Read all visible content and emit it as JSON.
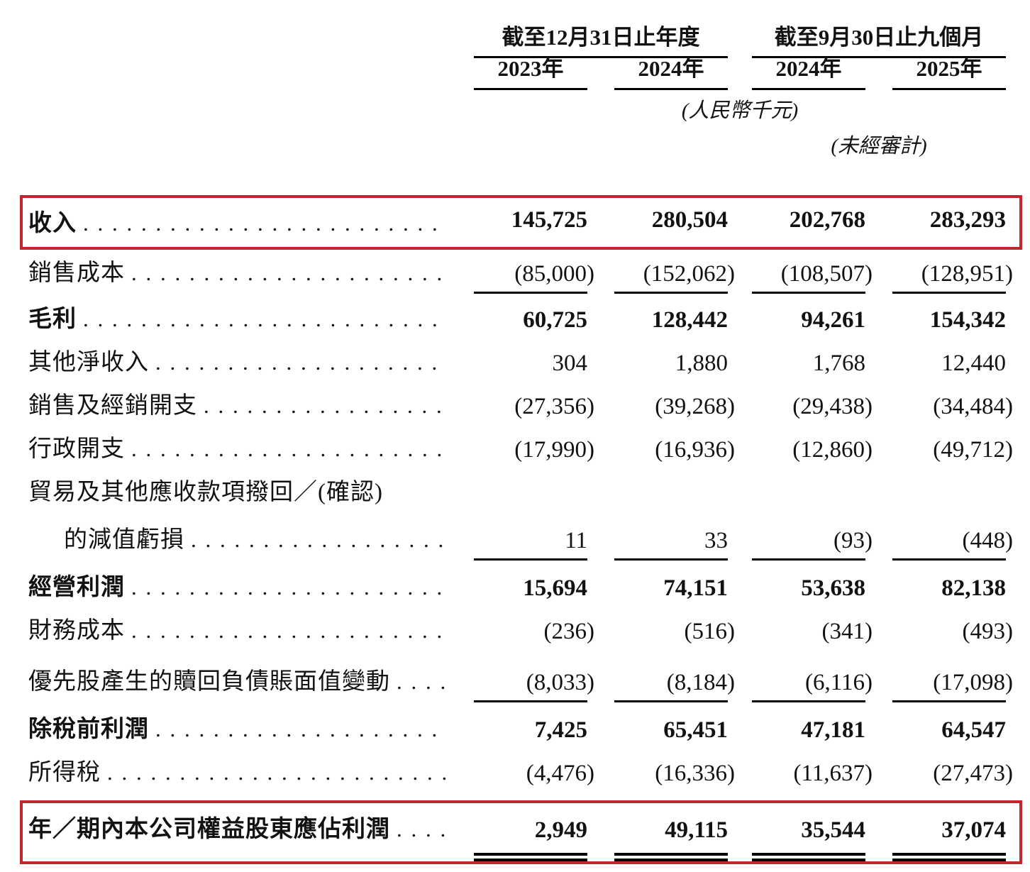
{
  "accent": {
    "highlight_border_color": "#c0272e",
    "rule_color": "#000000"
  },
  "header": {
    "group1": "截至12月31日止年度",
    "group2": "截至9月30日止九個月",
    "years": [
      "2023年",
      "2024年",
      "2024年",
      "2025年"
    ],
    "unit_note": "(人民幣千元)",
    "unaudited_note": "(未經審計)"
  },
  "table": {
    "rows": [
      {
        "label": "收入",
        "values": [
          "145,725",
          "280,504",
          "202,768",
          "283,293"
        ]
      },
      {
        "label": "銷售成本",
        "values": [
          "(85,000)",
          "(152,062)",
          "(108,507)",
          "(128,951)"
        ]
      },
      {
        "label": "毛利",
        "values": [
          "60,725",
          "128,442",
          "94,261",
          "154,342"
        ]
      },
      {
        "label": "其他淨收入",
        "values": [
          "304",
          "1,880",
          "1,768",
          "12,440"
        ]
      },
      {
        "label": "銷售及經銷開支",
        "values": [
          "(27,356)",
          "(39,268)",
          "(29,438)",
          "(34,484)"
        ]
      },
      {
        "label": "行政開支",
        "values": [
          "(17,990)",
          "(16,936)",
          "(12,860)",
          "(49,712)"
        ]
      },
      {
        "label": "貿易及其他應收款項撥回／(確認)",
        "values": []
      },
      {
        "label": "的減值虧損",
        "values": [
          "11",
          "33",
          "(93)",
          "(448)"
        ]
      },
      {
        "label": "經營利潤",
        "values": [
          "15,694",
          "74,151",
          "53,638",
          "82,138"
        ]
      },
      {
        "label": "財務成本",
        "values": [
          "(236)",
          "(516)",
          "(341)",
          "(493)"
        ]
      },
      {
        "label": "優先股產生的贖回負債賬面值變動",
        "values": [
          "(8,033)",
          "(8,184)",
          "(6,116)",
          "(17,098)"
        ]
      },
      {
        "label": "除稅前利潤",
        "values": [
          "7,425",
          "65,451",
          "47,181",
          "64,547"
        ]
      },
      {
        "label": "所得稅",
        "values": [
          "(4,476)",
          "(16,336)",
          "(11,637)",
          "(27,473)"
        ]
      },
      {
        "label": "年／期內本公司權益股東應佔利潤",
        "values": [
          "2,949",
          "49,115",
          "35,544",
          "37,074"
        ]
      }
    ]
  }
}
